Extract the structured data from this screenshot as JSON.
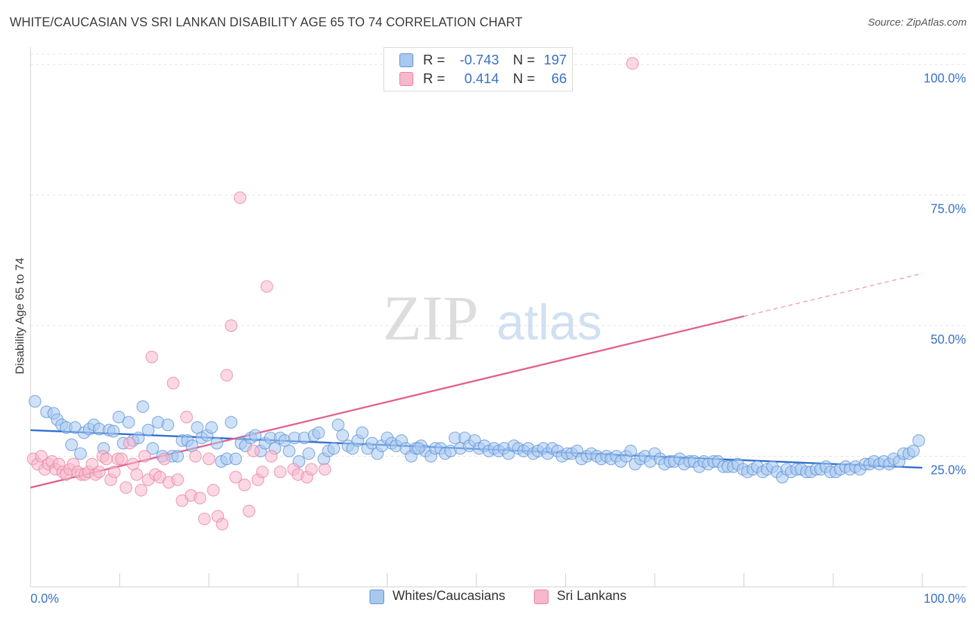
{
  "title": "WHITE/CAUCASIAN VS SRI LANKAN DISABILITY AGE 65 TO 74 CORRELATION CHART",
  "source": "Source: ZipAtlas.com",
  "watermark": {
    "zip": "ZIP",
    "atlas": "atlas"
  },
  "legend_stats": [
    {
      "r_label": "R =",
      "r_value": "-0.743",
      "n_label": "N =",
      "n_value": "197",
      "color": "#a8c8f0"
    },
    {
      "r_label": "R =",
      "r_value": "0.414",
      "n_label": "N =",
      "n_value": "66",
      "color": "#f7b8cc"
    }
  ],
  "colors": {
    "blue_fill": "#a8c8f0",
    "blue_stroke": "#5a8fd6",
    "blue_line": "#2f6fcc",
    "pink_fill": "#f7b8cc",
    "pink_stroke": "#e77fa0",
    "pink_line": "#e2628e",
    "axis_label": "#3a72c4"
  },
  "chart_data": {
    "type": "scatter",
    "title": "WHITE/CAUCASIAN VS SRI LANKAN DISABILITY AGE 65 TO 74 CORRELATION CHART",
    "ylabel": "Disability Age 65 to 74",
    "xlabel": "",
    "xlim": [
      0,
      100
    ],
    "ylim": [
      0,
      102
    ],
    "x_tick_labels": [
      "0.0%",
      "100.0%"
    ],
    "y_ticks": [
      25,
      50,
      75,
      100
    ],
    "y_tick_labels": [
      "25.0%",
      "50.0%",
      "75.0%",
      "100.0%"
    ],
    "grid": true,
    "legend": "bottom-center",
    "series": [
      {
        "name": "Whites/Caucasians",
        "trend": {
          "x": [
            0,
            100
          ],
          "y": [
            30.0,
            22.8
          ],
          "dashed_from": null
        },
        "points": [
          [
            0.5,
            35.5
          ],
          [
            1.8,
            33.5
          ],
          [
            2.6,
            33.2
          ],
          [
            3,
            32
          ],
          [
            3.5,
            31
          ],
          [
            4,
            30.5
          ],
          [
            4.6,
            27.2
          ],
          [
            5,
            30.5
          ],
          [
            5.6,
            25.5
          ],
          [
            6,
            29.5
          ],
          [
            6.6,
            30.2
          ],
          [
            7.1,
            31
          ],
          [
            7.7,
            30.2
          ],
          [
            8.2,
            26.5
          ],
          [
            8.8,
            30
          ],
          [
            9.3,
            29.8
          ],
          [
            9.9,
            32.5
          ],
          [
            10.4,
            27.5
          ],
          [
            11,
            31.5
          ],
          [
            11.5,
            28
          ],
          [
            12.1,
            28.5
          ],
          [
            12.6,
            34.5
          ],
          [
            13.2,
            30
          ],
          [
            13.7,
            26.5
          ],
          [
            14.3,
            31.5
          ],
          [
            14.8,
            25
          ],
          [
            15.4,
            31
          ],
          [
            15.9,
            25
          ],
          [
            16.5,
            25
          ],
          [
            17,
            28
          ],
          [
            17.6,
            28
          ],
          [
            18.1,
            27
          ],
          [
            18.7,
            30.5
          ],
          [
            19.2,
            28.5
          ],
          [
            19.8,
            29
          ],
          [
            20.3,
            30.5
          ],
          [
            20.9,
            27.5
          ],
          [
            21.4,
            24
          ],
          [
            22,
            24.5
          ],
          [
            22.5,
            31.5
          ],
          [
            23,
            24.5
          ],
          [
            23.6,
            27.5
          ],
          [
            24.1,
            27
          ],
          [
            24.7,
            28.5
          ],
          [
            25.2,
            29
          ],
          [
            25.8,
            26
          ],
          [
            26.3,
            27.5
          ],
          [
            26.9,
            28.5
          ],
          [
            27.4,
            26.5
          ],
          [
            28,
            28.5
          ],
          [
            28.5,
            28
          ],
          [
            29,
            26
          ],
          [
            29.6,
            28.5
          ],
          [
            30.1,
            24
          ],
          [
            30.7,
            28.5
          ],
          [
            31.2,
            25.5
          ],
          [
            31.8,
            29
          ],
          [
            32.3,
            29.5
          ],
          [
            32.9,
            24.5
          ],
          [
            33.4,
            26
          ],
          [
            34,
            26.5
          ],
          [
            34.5,
            31
          ],
          [
            35,
            29
          ],
          [
            35.6,
            27
          ],
          [
            36.1,
            26.5
          ],
          [
            36.7,
            28
          ],
          [
            37.2,
            29.5
          ],
          [
            37.8,
            26.5
          ],
          [
            38.3,
            27.5
          ],
          [
            38.9,
            25.5
          ],
          [
            39.4,
            27
          ],
          [
            40,
            28.5
          ],
          [
            40.5,
            27.5
          ],
          [
            41,
            27
          ],
          [
            41.6,
            28
          ],
          [
            42.1,
            26.5
          ],
          [
            42.7,
            25
          ],
          [
            43.2,
            26.5
          ],
          [
            43.8,
            27
          ],
          [
            44.3,
            26
          ],
          [
            44.9,
            25
          ],
          [
            45.4,
            26.5
          ],
          [
            46,
            26.5
          ],
          [
            46.5,
            25.5
          ],
          [
            47.1,
            26
          ],
          [
            47.6,
            28.5
          ],
          [
            48.2,
            26.5
          ],
          [
            48.7,
            28.5
          ],
          [
            49.2,
            27
          ],
          [
            49.8,
            28
          ],
          [
            50.3,
            26.5
          ],
          [
            50.9,
            27
          ],
          [
            51.4,
            26
          ],
          [
            52,
            26.5
          ],
          [
            52.5,
            26
          ],
          [
            53.1,
            26.5
          ],
          [
            53.6,
            25.5
          ],
          [
            54.2,
            27
          ],
          [
            54.7,
            26.5
          ],
          [
            55.3,
            26
          ],
          [
            55.8,
            26.5
          ],
          [
            56.4,
            25.5
          ],
          [
            56.9,
            26
          ],
          [
            57.5,
            26.5
          ],
          [
            58,
            25.5
          ],
          [
            58.5,
            26.5
          ],
          [
            59.1,
            26
          ],
          [
            59.6,
            25
          ],
          [
            60.2,
            25.5
          ],
          [
            60.7,
            25.5
          ],
          [
            61.3,
            26
          ],
          [
            61.8,
            24.5
          ],
          [
            62.4,
            25
          ],
          [
            62.9,
            25.5
          ],
          [
            63.5,
            25
          ],
          [
            64,
            24.5
          ],
          [
            64.6,
            25
          ],
          [
            65.1,
            24.5
          ],
          [
            65.7,
            25
          ],
          [
            66.2,
            24
          ],
          [
            66.8,
            25
          ],
          [
            67.3,
            26
          ],
          [
            67.8,
            23.5
          ],
          [
            68.4,
            24.5
          ],
          [
            68.9,
            25
          ],
          [
            69.5,
            24
          ],
          [
            70,
            25.5
          ],
          [
            70.6,
            24.5
          ],
          [
            71.1,
            23.5
          ],
          [
            71.7,
            24
          ],
          [
            72.2,
            24
          ],
          [
            72.8,
            24.5
          ],
          [
            73.3,
            23.5
          ],
          [
            73.9,
            24
          ],
          [
            74.4,
            24
          ],
          [
            75,
            23
          ],
          [
            75.5,
            24
          ],
          [
            76,
            23.5
          ],
          [
            76.6,
            24
          ],
          [
            77.1,
            24
          ],
          [
            77.7,
            23
          ],
          [
            78.2,
            23
          ],
          [
            78.8,
            23
          ],
          [
            79.3,
            23.5
          ],
          [
            79.9,
            22.5
          ],
          [
            80.4,
            22
          ],
          [
            81,
            22.5
          ],
          [
            81.5,
            23
          ],
          [
            82.1,
            22
          ],
          [
            82.6,
            22.5
          ],
          [
            83.2,
            23
          ],
          [
            83.7,
            22
          ],
          [
            84.3,
            21
          ],
          [
            84.8,
            22.5
          ],
          [
            85.3,
            22
          ],
          [
            85.9,
            22.5
          ],
          [
            86.4,
            22.5
          ],
          [
            87,
            22
          ],
          [
            87.5,
            22
          ],
          [
            88.1,
            22.5
          ],
          [
            88.6,
            22.5
          ],
          [
            89.2,
            23
          ],
          [
            89.7,
            22
          ],
          [
            90.3,
            22
          ],
          [
            90.8,
            22.5
          ],
          [
            91.4,
            23
          ],
          [
            91.9,
            22.5
          ],
          [
            92.5,
            23
          ],
          [
            93,
            22.5
          ],
          [
            93.6,
            23.5
          ],
          [
            94.1,
            23.5
          ],
          [
            94.6,
            24
          ],
          [
            95.2,
            23.5
          ],
          [
            95.7,
            24
          ],
          [
            96.3,
            23.5
          ],
          [
            96.8,
            24.5
          ],
          [
            97.4,
            24
          ],
          [
            97.9,
            25.5
          ],
          [
            98.5,
            25.5
          ],
          [
            99,
            26
          ],
          [
            99.6,
            28
          ],
          [
            43.5,
            26.5
          ]
        ]
      },
      {
        "name": "Sri Lankans",
        "trend": {
          "x": [
            0,
            100
          ],
          "y": [
            19.0,
            60.0
          ],
          "dashed_from": 80.0
        },
        "points": [
          [
            0.3,
            24.5
          ],
          [
            0.8,
            23.5
          ],
          [
            1.2,
            25
          ],
          [
            1.6,
            22.5
          ],
          [
            2,
            23.5
          ],
          [
            2.4,
            24
          ],
          [
            2.8,
            22.5
          ],
          [
            3.2,
            23.5
          ],
          [
            3.6,
            22
          ],
          [
            4,
            21.5
          ],
          [
            4.4,
            22.5
          ],
          [
            4.8,
            23.5
          ],
          [
            5.3,
            22
          ],
          [
            5.7,
            21.5
          ],
          [
            6.1,
            21.5
          ],
          [
            6.5,
            22
          ],
          [
            6.9,
            23.5
          ],
          [
            7.3,
            21.5
          ],
          [
            7.7,
            22
          ],
          [
            8.1,
            25
          ],
          [
            8.5,
            24.5
          ],
          [
            9,
            20.5
          ],
          [
            9.4,
            22
          ],
          [
            9.8,
            24.5
          ],
          [
            10.2,
            24.5
          ],
          [
            10.7,
            19
          ],
          [
            11.1,
            27.5
          ],
          [
            11.5,
            23.5
          ],
          [
            11.9,
            21.5
          ],
          [
            12.4,
            18.5
          ],
          [
            12.8,
            25
          ],
          [
            13.2,
            20.5
          ],
          [
            13.6,
            44
          ],
          [
            14,
            21.5
          ],
          [
            14.5,
            21
          ],
          [
            15,
            24.5
          ],
          [
            15.5,
            20
          ],
          [
            16,
            39
          ],
          [
            16.5,
            20.5
          ],
          [
            17,
            16.5
          ],
          [
            17.5,
            32.5
          ],
          [
            18,
            17.5
          ],
          [
            18.5,
            25
          ],
          [
            19,
            17
          ],
          [
            19.5,
            13
          ],
          [
            20,
            24.5
          ],
          [
            20.5,
            18.5
          ],
          [
            21,
            13.5
          ],
          [
            21.5,
            12
          ],
          [
            22,
            40.5
          ],
          [
            22.5,
            50
          ],
          [
            23,
            21
          ],
          [
            23.5,
            74.5
          ],
          [
            24,
            19.5
          ],
          [
            24.5,
            14.5
          ],
          [
            25,
            26
          ],
          [
            25.5,
            20.5
          ],
          [
            26,
            22
          ],
          [
            26.5,
            57.5
          ],
          [
            27,
            25
          ],
          [
            28,
            22
          ],
          [
            29.5,
            22.5
          ],
          [
            30,
            21.5
          ],
          [
            31,
            21
          ],
          [
            31.5,
            22.5
          ],
          [
            67.5,
            100.2
          ],
          [
            33,
            22.5
          ]
        ]
      }
    ]
  }
}
